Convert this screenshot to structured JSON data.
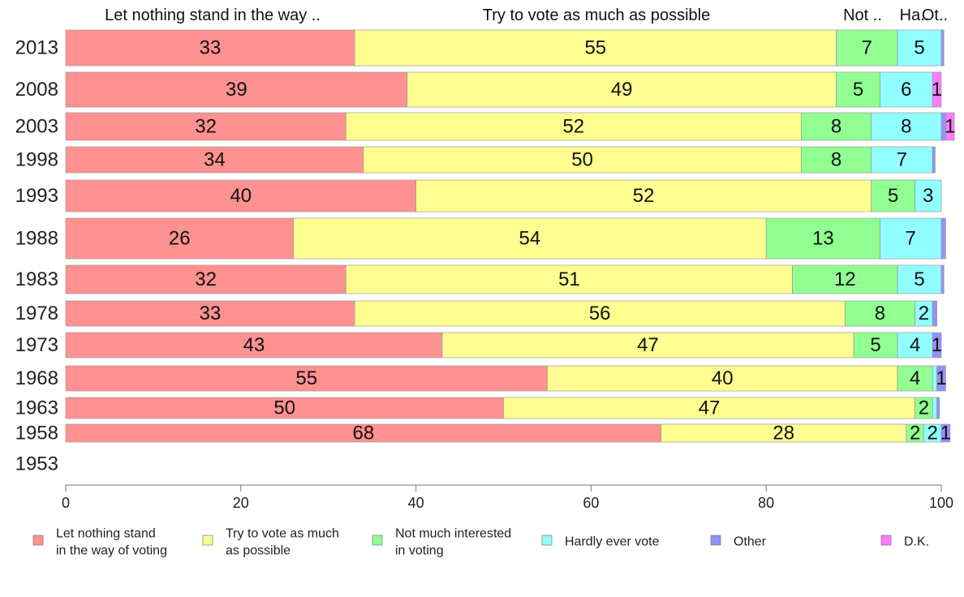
{
  "chart_data": {
    "type": "bar",
    "orientation": "horizontal",
    "stacked": true,
    "xlim": [
      0,
      100
    ],
    "x_ticks": [
      "0",
      "20",
      "40",
      "60",
      "80",
      "100"
    ],
    "column_headers": [
      "Let nothing stand in the way ..",
      "Try to vote as much as possible",
      "Not ..",
      "Ha..",
      "Ot.."
    ],
    "categories": [
      "2013",
      "2008",
      "2003",
      "1998",
      "1993",
      "1988",
      "1983",
      "1978",
      "1973",
      "1968",
      "1963",
      "1958",
      "1953"
    ],
    "series": [
      {
        "name": "Let nothing stand in the way of voting",
        "legend_lines": [
          "Let nothing stand",
          "in the way of voting"
        ],
        "color": "#ff9191",
        "values": [
          33,
          39,
          32,
          34,
          40,
          26,
          32,
          33,
          43,
          55,
          50,
          68,
          null
        ],
        "labels": [
          "33",
          "39",
          "32",
          "34",
          "40",
          "26",
          "32",
          "33",
          "43",
          "55",
          "50",
          "68",
          ""
        ]
      },
      {
        "name": "Try to vote as much as possible",
        "legend_lines": [
          "Try to vote as much",
          "as possible"
        ],
        "color": "#ffff91",
        "values": [
          55,
          49,
          52,
          50,
          52,
          54,
          51,
          56,
          47,
          40,
          47,
          28,
          null
        ],
        "labels": [
          "55",
          "49",
          "52",
          "50",
          "52",
          "54",
          "51",
          "56",
          "47",
          "40",
          "47",
          "28",
          ""
        ]
      },
      {
        "name": "Not much interested in voting",
        "legend_lines": [
          "Not much interested",
          "in voting"
        ],
        "color": "#91ff91",
        "values": [
          7,
          5,
          8,
          8,
          5,
          13,
          12,
          8,
          5,
          4,
          2,
          2,
          null
        ],
        "labels": [
          "7",
          "5",
          "8",
          "8",
          "5",
          "13",
          "12",
          "8",
          "5",
          "4",
          "2",
          "2",
          ""
        ]
      },
      {
        "name": "Hardly ever vote",
        "legend_lines": [
          "Hardly ever vote"
        ],
        "color": "#91ffff",
        "values": [
          5,
          6,
          8,
          7,
          3,
          7,
          5,
          2,
          4,
          0.5,
          0.5,
          2,
          null
        ],
        "labels": [
          "5",
          "6",
          "8",
          "7",
          "3",
          "7",
          "5",
          "2",
          "4",
          "",
          "",
          "2",
          ""
        ]
      },
      {
        "name": "Other",
        "legend_lines": [
          "Other"
        ],
        "color": "#9191ff",
        "values": [
          0.3,
          0,
          0.5,
          0.3,
          0,
          0.5,
          0.3,
          0.5,
          1,
          1,
          0.3,
          1,
          null
        ],
        "labels": [
          "",
          "",
          "",
          "",
          "",
          "",
          "",
          "",
          "1",
          "1",
          "",
          "1",
          ""
        ]
      },
      {
        "name": "D.K.",
        "legend_lines": [
          "D.K."
        ],
        "color": "#ff7bff",
        "values": [
          0,
          1,
          1,
          0,
          0,
          0,
          0,
          0,
          0,
          0,
          0,
          0,
          null
        ],
        "labels": [
          "",
          "1",
          "1",
          "",
          "",
          "",
          "",
          "",
          "",
          "",
          "",
          "",
          ""
        ]
      }
    ],
    "legend_position": "bottom",
    "grid": false
  }
}
